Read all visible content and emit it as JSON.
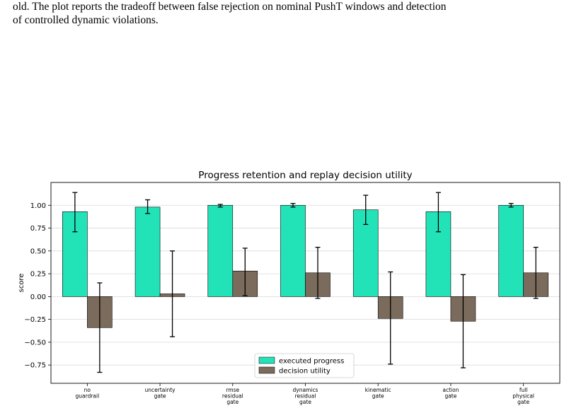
{
  "caption": {
    "line1": "old. The plot reports the tradeoff between false rejection on nominal PushT windows and detection",
    "line2": "of controlled dynamic violations."
  },
  "chart_data": {
    "type": "bar",
    "title": "Progress retention and replay decision utility",
    "xlabel": "",
    "ylabel": "score",
    "ylim": [
      -0.95,
      1.25
    ],
    "yticks": [
      -0.75,
      -0.5,
      -0.25,
      0.0,
      0.25,
      0.5,
      0.75,
      1.0
    ],
    "ytick_labels": [
      "−0.75",
      "−0.50",
      "−0.25",
      "0.00",
      "0.25",
      "0.50",
      "0.75",
      "1.00"
    ],
    "grid": "horizontal",
    "legend_position": "bottom-center",
    "categories": [
      [
        "no",
        "guardrail"
      ],
      [
        "uncertainty",
        "gate"
      ],
      [
        "rmse",
        "residual",
        "gate"
      ],
      [
        "dynamics",
        "residual",
        "gate"
      ],
      [
        "kinematic",
        "gate"
      ],
      [
        "action",
        "gate"
      ],
      [
        "full",
        "physical",
        "gate"
      ]
    ],
    "series": [
      {
        "name": "executed progress",
        "color": "#22e3b8",
        "values": [
          0.93,
          0.98,
          1.0,
          1.0,
          0.95,
          0.93,
          1.0
        ],
        "err_low": [
          0.71,
          0.91,
          0.98,
          0.98,
          0.79,
          0.71,
          0.98
        ],
        "err_high": [
          1.14,
          1.06,
          1.01,
          1.02,
          1.11,
          1.14,
          1.02
        ]
      },
      {
        "name": "decision utility",
        "color": "#7b6b5c",
        "values": [
          -0.34,
          0.03,
          0.28,
          0.26,
          -0.24,
          -0.27,
          0.26
        ],
        "err_low": [
          -0.83,
          -0.44,
          0.01,
          -0.02,
          -0.74,
          -0.78,
          -0.02
        ],
        "err_high": [
          0.15,
          0.5,
          0.53,
          0.54,
          0.27,
          0.24,
          0.54
        ]
      }
    ]
  }
}
